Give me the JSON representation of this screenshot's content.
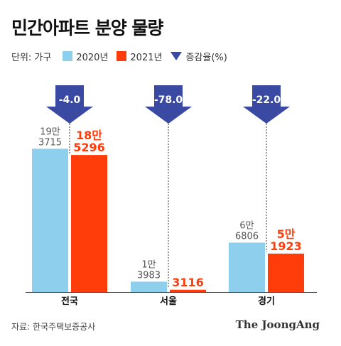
{
  "title": "민간아파트 분양 물량",
  "legend": {
    "unit": "단위: 가구",
    "series_2020": "2020년",
    "series_2021": "2021년",
    "change": "증감율(%)"
  },
  "colors": {
    "bar_2020": "#8ecfee",
    "bar_2021": "#ff3d0a",
    "arrow": "#3a4aa3",
    "label_2020": "#555555",
    "label_2021": "#ff3d0a"
  },
  "chart_data": {
    "type": "bar",
    "categories": [
      "전국",
      "서울",
      "경기"
    ],
    "series": [
      {
        "name": "2020년",
        "values": [
          193715,
          13983,
          66806
        ],
        "labels": [
          [
            "19만",
            "3715"
          ],
          [
            "1만",
            "3983"
          ],
          [
            "6만",
            "6806"
          ]
        ]
      },
      {
        "name": "2021년",
        "values": [
          185296,
          3116,
          51923
        ],
        "labels": [
          [
            "18만",
            "5296"
          ],
          [
            "",
            "3116"
          ],
          [
            "5만",
            "1923"
          ]
        ]
      }
    ],
    "change_label": "증감율(%)",
    "change_labels": [
      "-4.0",
      "-78.0",
      "-22.0"
    ],
    "ylim": [
      0,
      195000
    ],
    "unit": "가구"
  },
  "footer": {
    "source": "자료: 한국주택보증공사",
    "brand": "The JoongAng"
  }
}
